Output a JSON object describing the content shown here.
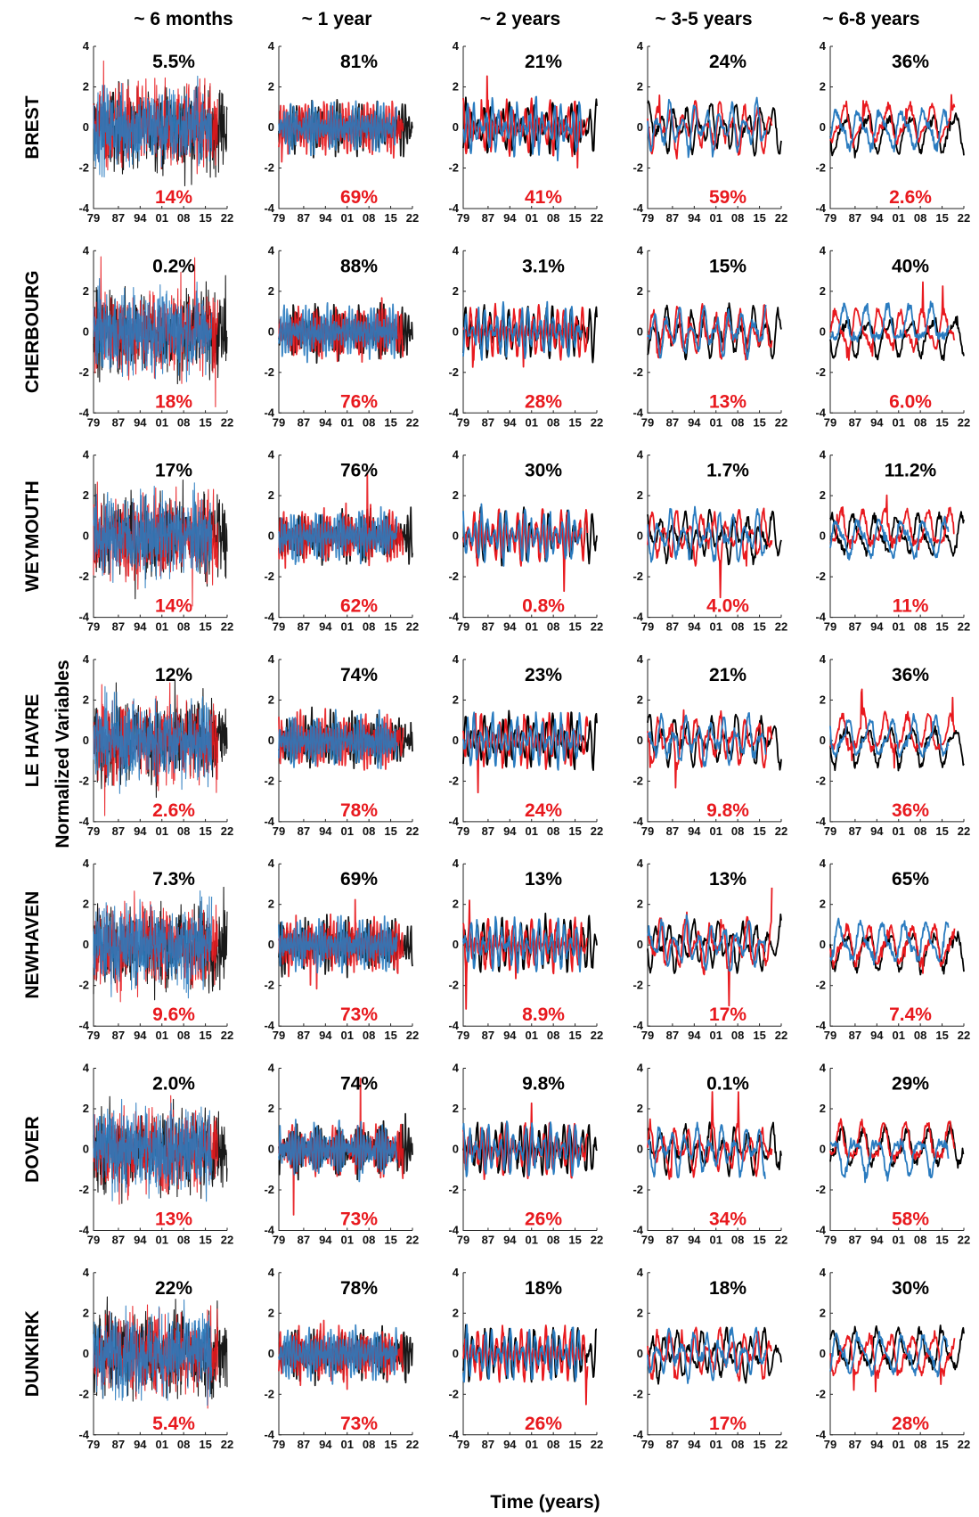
{
  "figure": {
    "ylabel": "Normalized Variables",
    "xlabel": "Time (years)"
  },
  "colors": {
    "black": "#000000",
    "red": "#e8191e",
    "blue": "#2a7bbf"
  },
  "chart_data": {
    "type": "line",
    "columns": [
      {
        "title": "~ 6 months",
        "period_years": 0.5
      },
      {
        "title": "~ 1 year",
        "period_years": 1
      },
      {
        "title": "~ 2 years",
        "period_years": 2
      },
      {
        "title": "~ 3-5 years",
        "period_years": 4
      },
      {
        "title": "~ 6-8 years",
        "period_years": 7
      }
    ],
    "rows": [
      {
        "station": "BREST",
        "top": [
          "5.5%",
          "81%",
          "21%",
          "24%",
          "36%"
        ],
        "bottom": [
          "14%",
          "69%",
          "41%",
          "59%",
          "2.6%"
        ]
      },
      {
        "station": "CHERBOURG",
        "top": [
          "0.2%",
          "88%",
          "3.1%",
          "15%",
          "40%"
        ],
        "bottom": [
          "18%",
          "76%",
          "28%",
          "13%",
          "6.0%"
        ]
      },
      {
        "station": "WEYMOUTH",
        "top": [
          "17%",
          "76%",
          "30%",
          "1.7%",
          "11.2%"
        ],
        "bottom": [
          "14%",
          "62%",
          "0.8%",
          "4.0%",
          "11%"
        ]
      },
      {
        "station": "LE HAVRE",
        "top": [
          "12%",
          "74%",
          "23%",
          "21%",
          "36%"
        ],
        "bottom": [
          "2.6%",
          "78%",
          "24%",
          "9.8%",
          "36%"
        ]
      },
      {
        "station": "NEWHAVEN",
        "top": [
          "7.3%",
          "69%",
          "13%",
          "13%",
          "65%"
        ],
        "bottom": [
          "9.6%",
          "73%",
          "8.9%",
          "17%",
          "7.4%"
        ]
      },
      {
        "station": "DOVER",
        "top": [
          "2.0%",
          "74%",
          "9.8%",
          "0.1%",
          "29%"
        ],
        "bottom": [
          "13%",
          "73%",
          "26%",
          "34%",
          "58%"
        ]
      },
      {
        "station": "DUNKIRK",
        "top": [
          "22%",
          "78%",
          "18%",
          "18%",
          "30%"
        ],
        "bottom": [
          "5.4%",
          "73%",
          "26%",
          "17%",
          "28%"
        ]
      }
    ],
    "series_colors": [
      "#000000",
      "#e8191e",
      "#2a7bbf"
    ],
    "series_end_year": [
      22,
      19,
      17
    ],
    "xlim": [
      1979,
      2022
    ],
    "xticks": [
      "79",
      "87",
      "94",
      "01",
      "08",
      "15",
      "22"
    ],
    "xtick_years": [
      1979,
      1987,
      1994,
      2001,
      2008,
      2015,
      2022
    ],
    "ylim": [
      -4,
      4
    ],
    "yticks": [
      "-4",
      "-2",
      "0",
      "2",
      "4"
    ],
    "ytick_values": [
      -4,
      -2,
      0,
      2,
      4
    ]
  }
}
